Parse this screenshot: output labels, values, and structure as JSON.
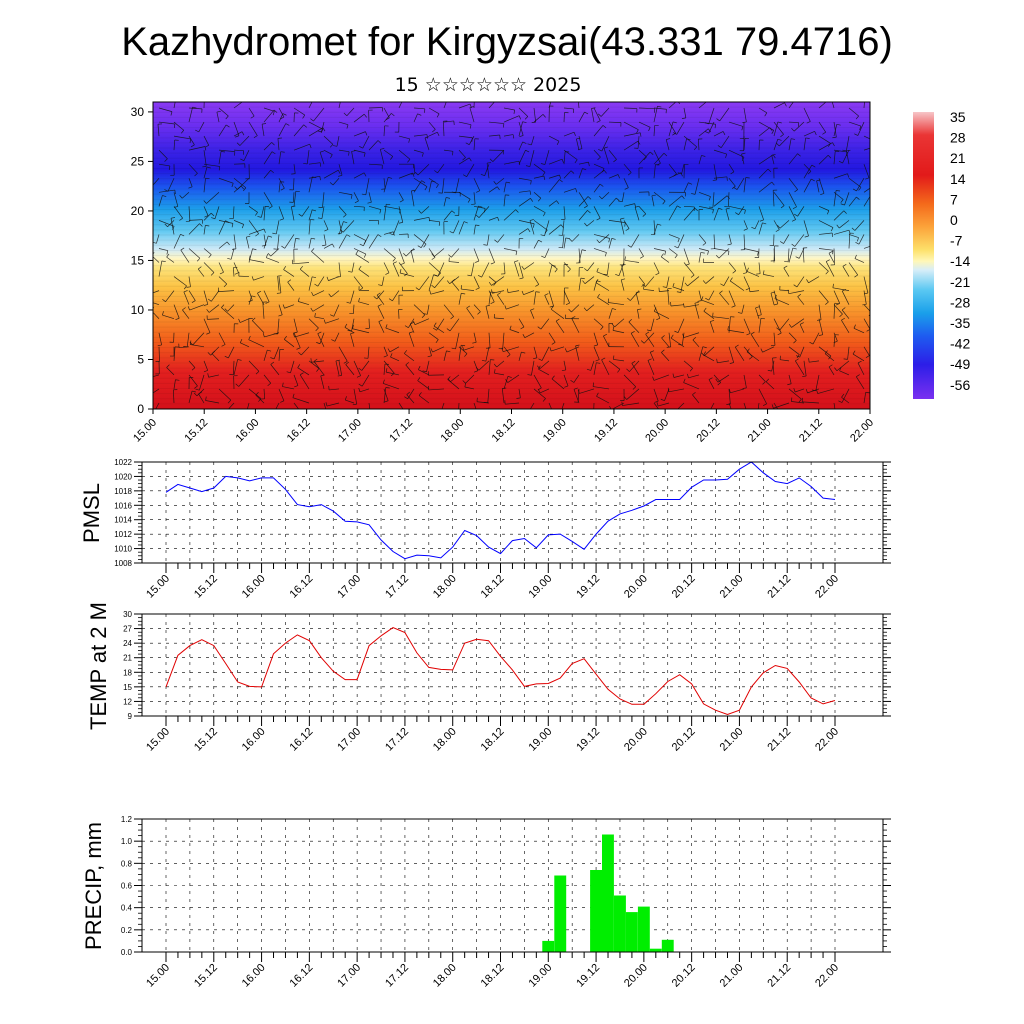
{
  "header": {
    "title": "Kazhydromet for Kirgyzsai(43.331 79.4716)",
    "subtitle": "15 ☆☆☆☆☆☆ 2025"
  },
  "x_ticks": [
    "15.00",
    "15.12",
    "16.00",
    "16.12",
    "17.00",
    "17.12",
    "18.00",
    "18.12",
    "19.00",
    "19.12",
    "20.00",
    "20.12",
    "21.00",
    "21.12",
    "22.00"
  ],
  "colors": {
    "pmsl": "#0000ff",
    "temp": "#e00000",
    "precip": "#00ee00"
  },
  "chart_data": [
    {
      "type": "heatmap",
      "title": "",
      "ylabel": "",
      "yticks": [
        0,
        5,
        10,
        15,
        20,
        25,
        30
      ],
      "ylim": [
        0,
        31
      ],
      "xlim": [
        0,
        168
      ],
      "colorbar": {
        "labels": [
          35,
          28,
          21,
          14,
          7,
          0,
          -7,
          -14,
          -21,
          -28,
          -35,
          -42,
          -49,
          -56
        ],
        "range": [
          -60,
          38
        ]
      },
      "temperature_profile": [
        {
          "h": 0,
          "t": 25
        },
        {
          "h": 5,
          "t": 20
        },
        {
          "h": 8,
          "t": 14
        },
        {
          "h": 11,
          "t": 6
        },
        {
          "h": 13,
          "t": -2
        },
        {
          "h": 15,
          "t": -10
        },
        {
          "h": 16,
          "t": -15
        },
        {
          "h": 18,
          "t": -26
        },
        {
          "h": 20,
          "t": -38
        },
        {
          "h": 22,
          "t": -50
        },
        {
          "h": 24,
          "t": -58
        },
        {
          "h": 26,
          "t": -55
        },
        {
          "h": 28,
          "t": -60
        },
        {
          "h": 31,
          "t": -62
        }
      ],
      "wind_barbs": true
    },
    {
      "type": "line",
      "name": "PMSL",
      "ylabel": "PMSL",
      "ylim": [
        1008,
        1022
      ],
      "yticks": [
        1008,
        1010,
        1012,
        1014,
        1016,
        1018,
        1020,
        1022
      ],
      "x": [
        0,
        3,
        6,
        9,
        12,
        15,
        18,
        21,
        24,
        27,
        30,
        33,
        36,
        39,
        42,
        45,
        48,
        51,
        54,
        57,
        60,
        63,
        66,
        69,
        72,
        75,
        78,
        81,
        84,
        87,
        90,
        93,
        96,
        99,
        102,
        105,
        108,
        111,
        114,
        117,
        120,
        123,
        126,
        129,
        132,
        135,
        138,
        141,
        144,
        147,
        150,
        153,
        156,
        159,
        162,
        165,
        168
      ],
      "values": [
        1017.8,
        1018.9,
        1018.4,
        1017.9,
        1018.4,
        1020.0,
        1019.8,
        1019.4,
        1019.8,
        1019.8,
        1018.2,
        1016.1,
        1015.8,
        1016.1,
        1015.2,
        1013.8,
        1013.7,
        1013.3,
        1011.2,
        1009.6,
        1008.6,
        1009.1,
        1009.0,
        1008.7,
        1010.2,
        1012.5,
        1011.8,
        1010.2,
        1009.3,
        1011.1,
        1011.4,
        1010.1,
        1011.9,
        1012.0,
        1011.0,
        1009.9,
        1012.0,
        1013.8,
        1014.8,
        1015.3,
        1015.9,
        1016.8,
        1016.8,
        1016.8,
        1018.5,
        1019.5,
        1019.5,
        1019.6,
        1021.0,
        1022.0,
        1020.5,
        1019.3,
        1019.0,
        1019.8,
        1018.6,
        1017.0,
        1016.8
      ]
    },
    {
      "type": "line",
      "name": "TEMP at 2 M",
      "ylabel": "TEMP at 2 M",
      "ylim": [
        9,
        30
      ],
      "yticks": [
        9,
        12,
        15,
        18,
        21,
        24,
        27,
        30
      ],
      "x": [
        0,
        3,
        6,
        9,
        12,
        15,
        18,
        21,
        24,
        27,
        30,
        33,
        36,
        39,
        42,
        45,
        48,
        51,
        54,
        57,
        60,
        63,
        66,
        69,
        72,
        75,
        78,
        81,
        84,
        87,
        90,
        93,
        96,
        99,
        102,
        105,
        108,
        111,
        114,
        117,
        120,
        123,
        126,
        129,
        132,
        135,
        138,
        141,
        144,
        147,
        150,
        153,
        156,
        159,
        162,
        165,
        168
      ],
      "values": [
        15.0,
        21.5,
        23.5,
        24.7,
        23.5,
        19.8,
        16.0,
        15.1,
        15.0,
        21.8,
        24.0,
        25.7,
        24.5,
        21.0,
        18.2,
        16.5,
        16.5,
        23.5,
        25.5,
        27.2,
        26.2,
        22.0,
        19.0,
        18.6,
        18.5,
        24.0,
        24.8,
        24.5,
        21.3,
        18.5,
        15.1,
        15.6,
        15.7,
        16.8,
        19.8,
        20.8,
        17.6,
        14.5,
        12.5,
        11.4,
        11.4,
        13.6,
        16.1,
        17.5,
        15.6,
        11.5,
        10.2,
        9.3,
        10.2,
        15.0,
        17.9,
        19.4,
        18.8,
        16.0,
        12.7,
        11.5,
        12.2
      ]
    },
    {
      "type": "bar",
      "name": "PRECIP, mm",
      "ylabel": "PRECIP, mm",
      "ylim": [
        0,
        1.2
      ],
      "yticks": [
        "0.0",
        "0.2",
        "0.4",
        "0.6",
        "0.8",
        "1.0",
        "1.2"
      ],
      "x": [
        96,
        99,
        102,
        105,
        108,
        111,
        114,
        117,
        120,
        123,
        126,
        129
      ],
      "values": [
        0.1,
        0.69,
        0.0,
        0.0,
        0.74,
        1.06,
        0.51,
        0.36,
        0.41,
        0.03,
        0.11,
        0.0
      ]
    }
  ]
}
